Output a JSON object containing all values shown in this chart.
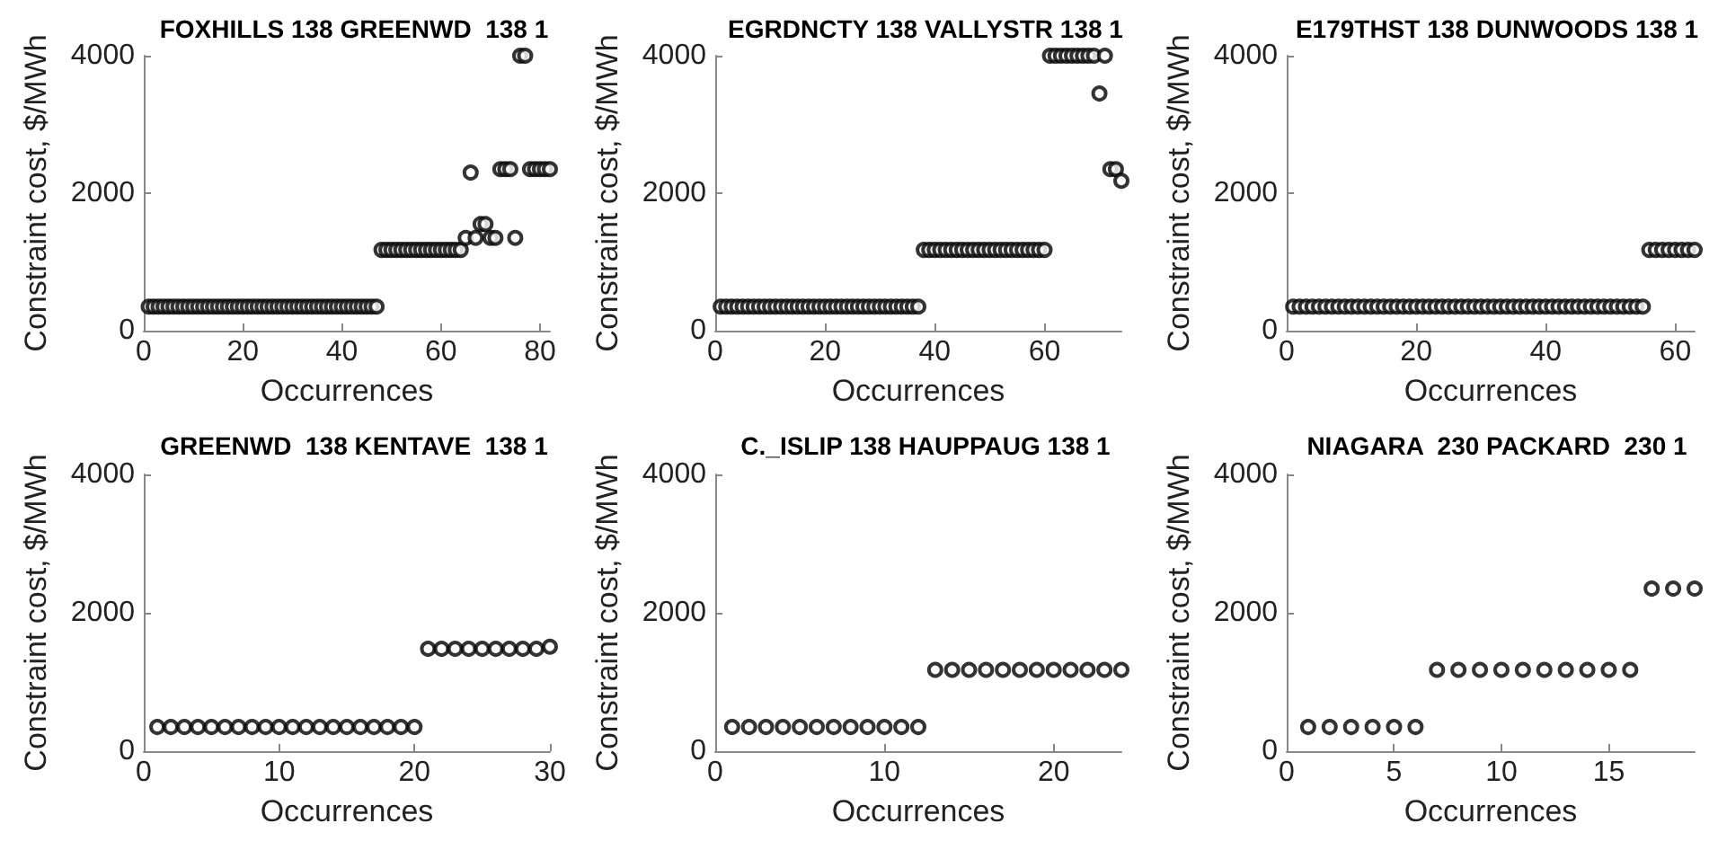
{
  "chart_data": [
    {
      "type": "scatter",
      "title": "FOXHILLS 138 GREENWD  138 1",
      "xlabel": "Occurrences",
      "ylabel": "Constraint cost, $/MWh",
      "marker": "circle",
      "color": "#000000",
      "xlim": [
        0,
        82
      ],
      "xticks": [
        0,
        20,
        40,
        60,
        80
      ],
      "ylim": [
        0,
        4000
      ],
      "yticks": [
        0,
        2000,
        4000
      ],
      "x": [
        1,
        2,
        3,
        4,
        5,
        6,
        7,
        8,
        9,
        10,
        11,
        12,
        13,
        14,
        15,
        16,
        17,
        18,
        19,
        20,
        21,
        22,
        23,
        24,
        25,
        26,
        27,
        28,
        29,
        30,
        31,
        32,
        33,
        34,
        35,
        36,
        37,
        38,
        39,
        40,
        41,
        42,
        43,
        44,
        45,
        46,
        47,
        48,
        49,
        50,
        51,
        52,
        53,
        54,
        55,
        56,
        57,
        58,
        59,
        60,
        61,
        62,
        63,
        64,
        65,
        66,
        67,
        68,
        69,
        70,
        71,
        72,
        73,
        74,
        75,
        76,
        77,
        78,
        79,
        80,
        81,
        82
      ],
      "values": [
        350,
        350,
        350,
        350,
        350,
        350,
        350,
        350,
        350,
        350,
        350,
        350,
        350,
        350,
        350,
        350,
        350,
        350,
        350,
        350,
        350,
        350,
        350,
        350,
        350,
        350,
        350,
        350,
        350,
        350,
        350,
        350,
        350,
        350,
        350,
        350,
        350,
        350,
        350,
        350,
        350,
        350,
        350,
        350,
        350,
        350,
        350,
        1175,
        1175,
        1175,
        1175,
        1175,
        1175,
        1175,
        1175,
        1175,
        1175,
        1175,
        1175,
        1175,
        1175,
        1175,
        1175,
        1175,
        1350,
        2300,
        1350,
        1550,
        1550,
        1350,
        1350,
        2350,
        2350,
        2350,
        1350,
        4000,
        4000,
        2350,
        2350,
        2350,
        2350,
        2350
      ]
    },
    {
      "type": "scatter",
      "title": "EGRDNCTY 138 VALLYSTR 138 1",
      "xlabel": "Occurrences",
      "ylabel": "Constraint cost, $/MWh",
      "marker": "circle",
      "color": "#000000",
      "xlim": [
        0,
        74
      ],
      "xticks": [
        0,
        20,
        40,
        60
      ],
      "ylim": [
        0,
        4000
      ],
      "yticks": [
        0,
        2000,
        4000
      ],
      "x": [
        1,
        2,
        3,
        4,
        5,
        6,
        7,
        8,
        9,
        10,
        11,
        12,
        13,
        14,
        15,
        16,
        17,
        18,
        19,
        20,
        21,
        22,
        23,
        24,
        25,
        26,
        27,
        28,
        29,
        30,
        31,
        32,
        33,
        34,
        35,
        36,
        37,
        38,
        39,
        40,
        41,
        42,
        43,
        44,
        45,
        46,
        47,
        48,
        49,
        50,
        51,
        52,
        53,
        54,
        55,
        56,
        57,
        58,
        59,
        60,
        61,
        62,
        63,
        64,
        65,
        66,
        67,
        68,
        69,
        70,
        71,
        72,
        73,
        74
      ],
      "values": [
        350,
        350,
        350,
        350,
        350,
        350,
        350,
        350,
        350,
        350,
        350,
        350,
        350,
        350,
        350,
        350,
        350,
        350,
        350,
        350,
        350,
        350,
        350,
        350,
        350,
        350,
        350,
        350,
        350,
        350,
        350,
        350,
        350,
        350,
        350,
        350,
        350,
        1175,
        1175,
        1175,
        1175,
        1175,
        1175,
        1175,
        1175,
        1175,
        1175,
        1175,
        1175,
        1175,
        1175,
        1175,
        1175,
        1175,
        1175,
        1175,
        1175,
        1175,
        1175,
        1175,
        4000,
        4000,
        4000,
        4000,
        4000,
        4000,
        4000,
        4000,
        4000,
        3450,
        4000,
        2350,
        2350,
        2180
      ]
    },
    {
      "type": "scatter",
      "title": "E179THST 138 DUNWOODS 138 1",
      "xlabel": "Occurrences",
      "ylabel": "Constraint cost, $/MWh",
      "marker": "circle",
      "color": "#000000",
      "xlim": [
        0,
        63
      ],
      "xticks": [
        0,
        20,
        40,
        60
      ],
      "ylim": [
        0,
        4000
      ],
      "yticks": [
        0,
        2000,
        4000
      ],
      "x": [
        1,
        2,
        3,
        4,
        5,
        6,
        7,
        8,
        9,
        10,
        11,
        12,
        13,
        14,
        15,
        16,
        17,
        18,
        19,
        20,
        21,
        22,
        23,
        24,
        25,
        26,
        27,
        28,
        29,
        30,
        31,
        32,
        33,
        34,
        35,
        36,
        37,
        38,
        39,
        40,
        41,
        42,
        43,
        44,
        45,
        46,
        47,
        48,
        49,
        50,
        51,
        52,
        53,
        54,
        55,
        56,
        57,
        58,
        59,
        60,
        61,
        62,
        63
      ],
      "values": [
        350,
        350,
        350,
        350,
        350,
        350,
        350,
        350,
        350,
        350,
        350,
        350,
        350,
        350,
        350,
        350,
        350,
        350,
        350,
        350,
        350,
        350,
        350,
        350,
        350,
        350,
        350,
        350,
        350,
        350,
        350,
        350,
        350,
        350,
        350,
        350,
        350,
        350,
        350,
        350,
        350,
        350,
        350,
        350,
        350,
        350,
        350,
        350,
        350,
        350,
        350,
        350,
        350,
        350,
        350,
        1175,
        1175,
        1175,
        1175,
        1175,
        1175,
        1175,
        1175
      ]
    },
    {
      "type": "scatter",
      "title": "GREENWD  138 KENTAVE  138 1",
      "xlabel": "Occurrences",
      "ylabel": "Constraint cost, $/MWh",
      "marker": "circle",
      "color": "#000000",
      "xlim": [
        0,
        30
      ],
      "xticks": [
        0,
        10,
        20,
        30
      ],
      "ylim": [
        0,
        4000
      ],
      "yticks": [
        0,
        2000,
        4000
      ],
      "x": [
        1,
        2,
        3,
        4,
        5,
        6,
        7,
        8,
        9,
        10,
        11,
        12,
        13,
        14,
        15,
        16,
        17,
        18,
        19,
        20,
        21,
        22,
        23,
        24,
        25,
        26,
        27,
        28,
        29,
        30
      ],
      "values": [
        350,
        350,
        350,
        350,
        350,
        350,
        350,
        350,
        350,
        350,
        350,
        350,
        350,
        350,
        350,
        350,
        350,
        350,
        350,
        350,
        1480,
        1480,
        1480,
        1480,
        1480,
        1480,
        1480,
        1480,
        1480,
        1510
      ]
    },
    {
      "type": "scatter",
      "title": "C._ISLIP 138 HAUPPAUG 138 1",
      "xlabel": "Occurrences",
      "ylabel": "Constraint cost, $/MWh",
      "marker": "circle",
      "color": "#000000",
      "xlim": [
        0,
        24
      ],
      "xticks": [
        0,
        10,
        20
      ],
      "ylim": [
        0,
        4000
      ],
      "yticks": [
        0,
        2000,
        4000
      ],
      "x": [
        1,
        2,
        3,
        4,
        5,
        6,
        7,
        8,
        9,
        10,
        11,
        12,
        13,
        14,
        15,
        16,
        17,
        18,
        19,
        20,
        21,
        22,
        23,
        24
      ],
      "values": [
        350,
        350,
        350,
        350,
        350,
        350,
        350,
        350,
        350,
        350,
        350,
        350,
        1175,
        1175,
        1175,
        1175,
        1175,
        1175,
        1175,
        1175,
        1175,
        1175,
        1175,
        1175
      ]
    },
    {
      "type": "scatter",
      "title": "NIAGARA  230 PACKARD  230 1",
      "xlabel": "Occurrences",
      "ylabel": "Constraint cost, $/MWh",
      "marker": "circle",
      "color": "#000000",
      "xlim": [
        0,
        19
      ],
      "xticks": [
        0,
        5,
        10,
        15
      ],
      "ylim": [
        0,
        4000
      ],
      "yticks": [
        0,
        2000,
        4000
      ],
      "x": [
        1,
        2,
        3,
        4,
        5,
        6,
        7,
        8,
        9,
        10,
        11,
        12,
        13,
        14,
        15,
        16,
        17,
        18,
        19
      ],
      "values": [
        350,
        350,
        350,
        350,
        350,
        350,
        1175,
        1175,
        1175,
        1175,
        1175,
        1175,
        1175,
        1175,
        1175,
        1175,
        2350,
        2350,
        2350
      ]
    }
  ]
}
